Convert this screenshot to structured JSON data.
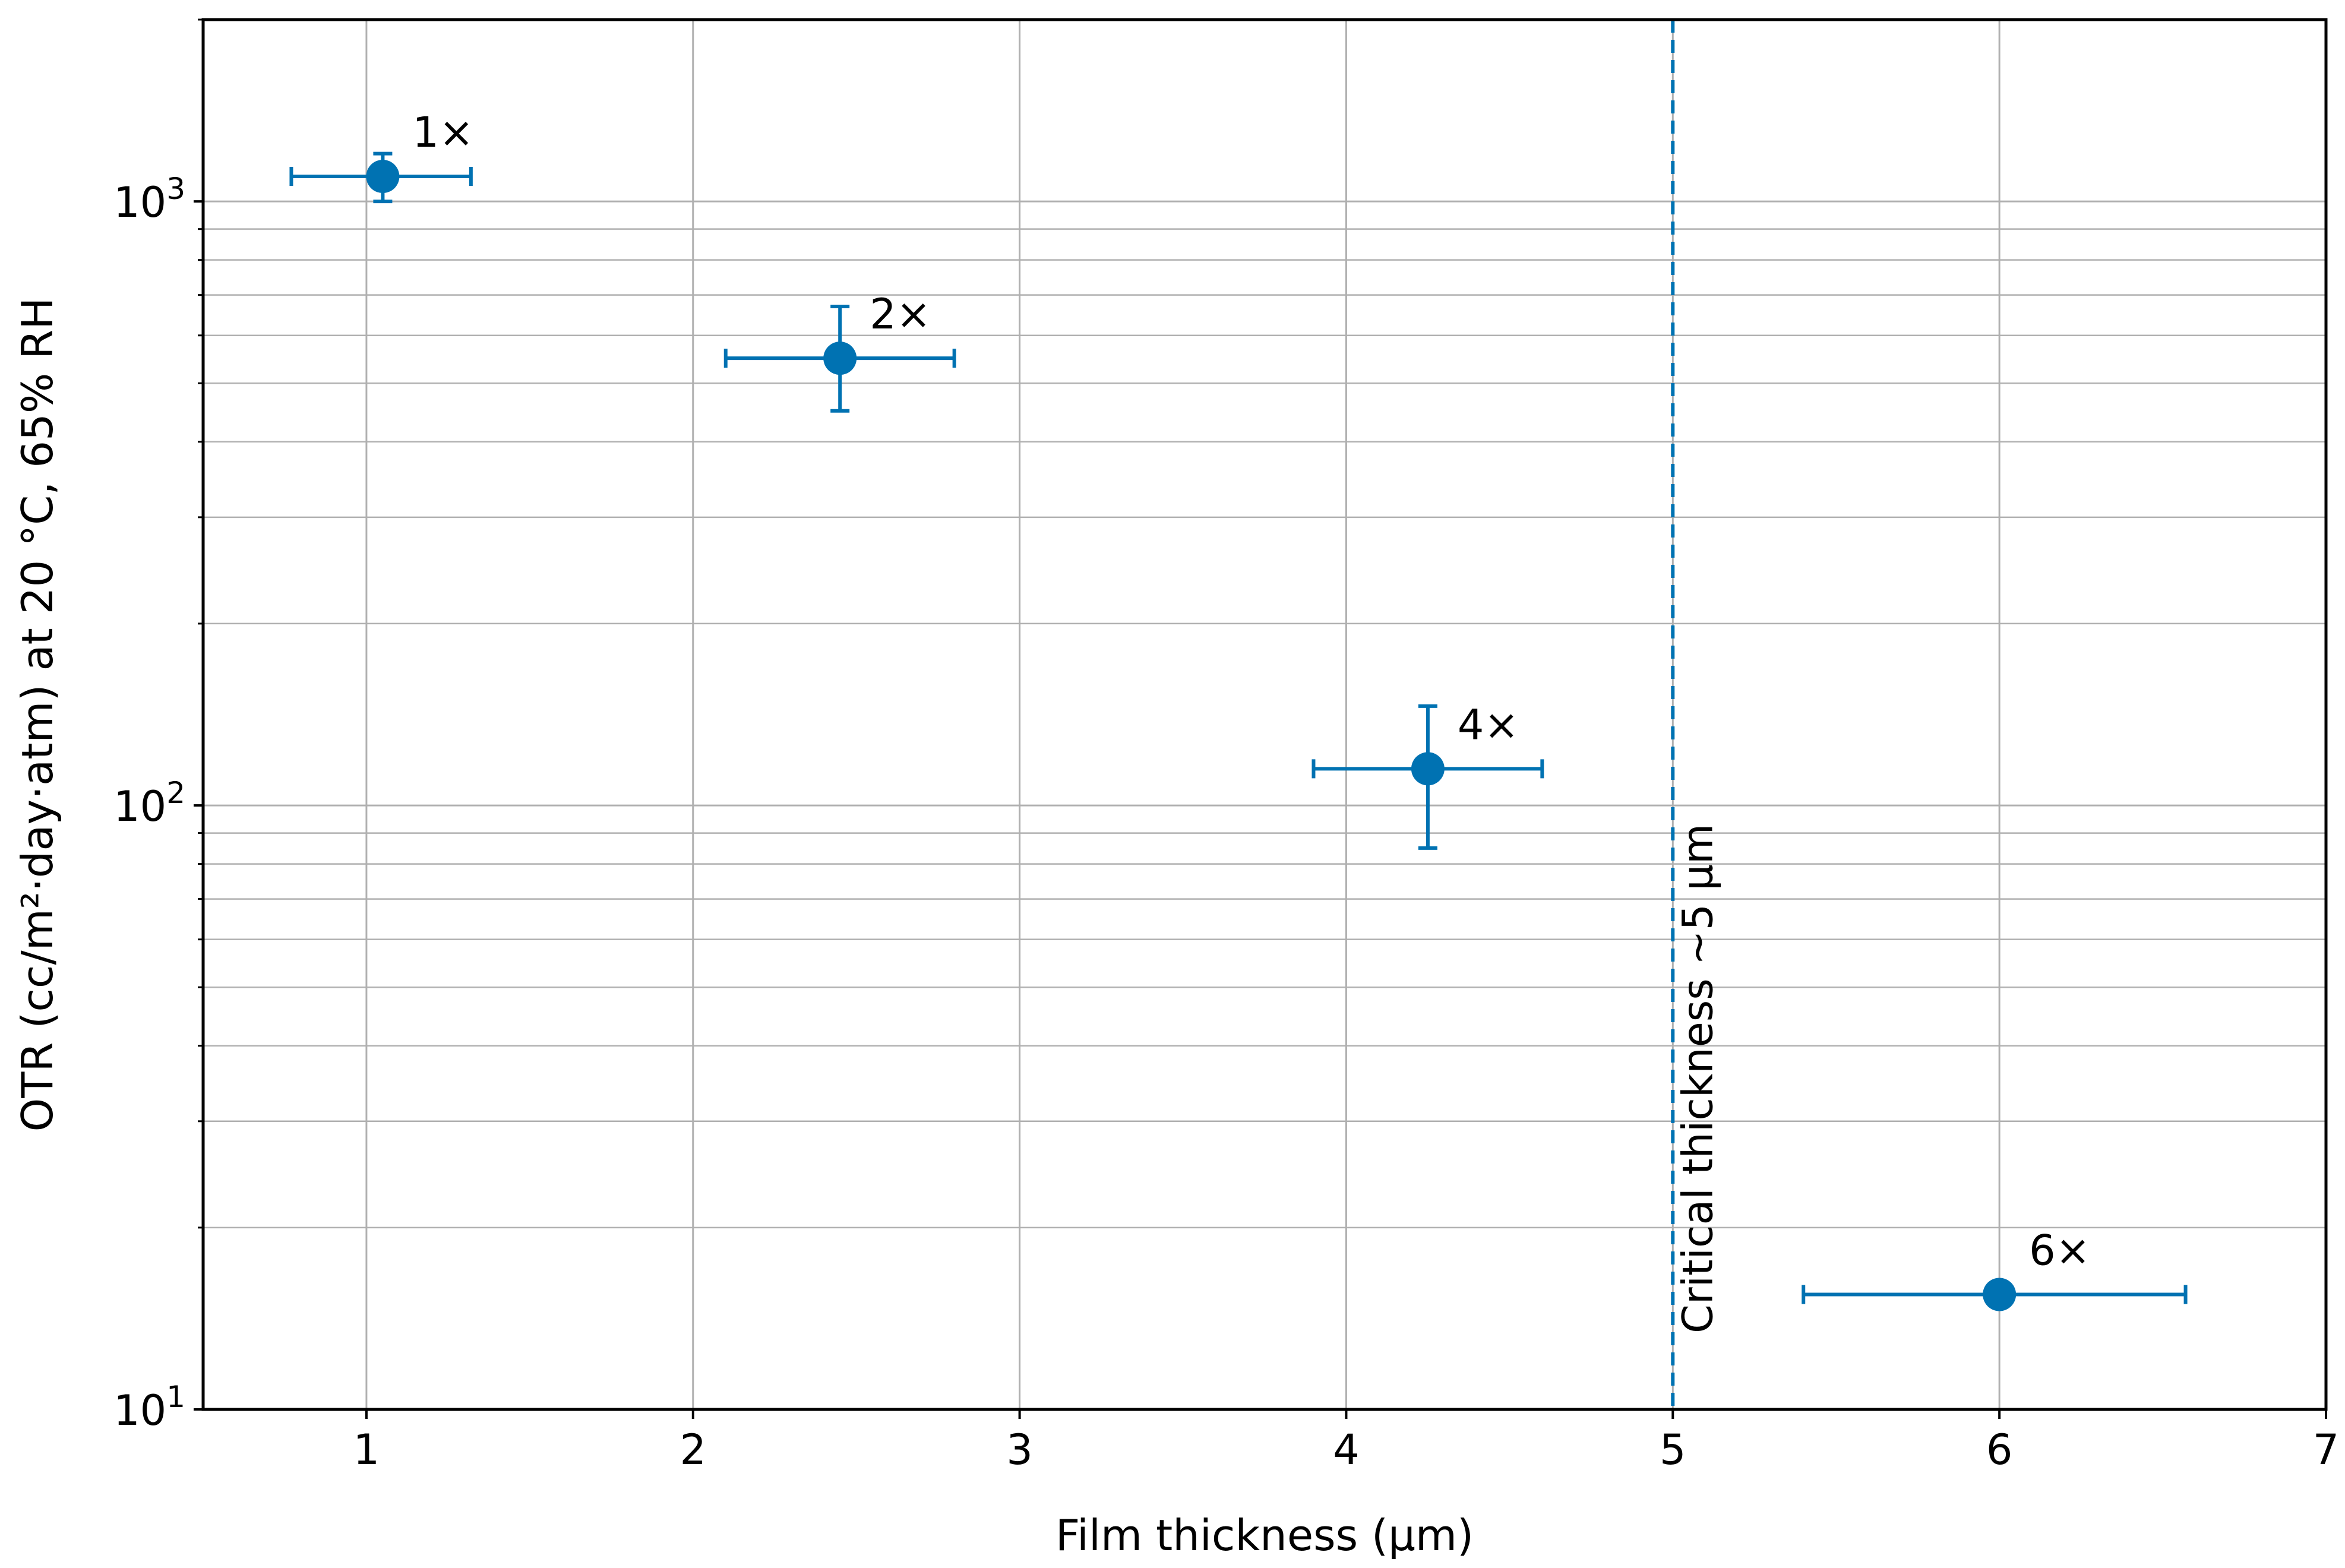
{
  "chart_data": {
    "type": "scatter",
    "xlabel": "Film thickness (µm)",
    "ylabel": "OTR (cc/m²·day·atm) at 20 °C, 65% RH",
    "xlim": [
      0.5,
      7
    ],
    "ylim": [
      10,
      2000
    ],
    "yscale": "log",
    "grid": true,
    "x_ticks": [
      1,
      2,
      3,
      4,
      5,
      6,
      7
    ],
    "y_ticks": [
      {
        "value": 10,
        "base": "10",
        "exp": "1"
      },
      {
        "value": 100,
        "base": "10",
        "exp": "2"
      },
      {
        "value": 1000,
        "base": "10",
        "exp": "3"
      }
    ],
    "color": "#0072b2",
    "points": [
      {
        "label": "1×",
        "x": 1.05,
        "y": 1100,
        "xerr": [
          0.77,
          1.32
        ],
        "yerr": [
          1000,
          1200
        ]
      },
      {
        "label": "2×",
        "x": 2.45,
        "y": 550,
        "xerr": [
          2.1,
          2.8
        ],
        "yerr": [
          450,
          670
        ]
      },
      {
        "label": "4×",
        "x": 4.25,
        "y": 115,
        "xerr": [
          3.9,
          4.6
        ],
        "yerr": [
          85,
          146
        ]
      },
      {
        "label": "6×",
        "x": 6.0,
        "y": 15.5,
        "xerr": [
          5.4,
          6.57
        ],
        "yerr": [
          15.5,
          15.5
        ]
      }
    ],
    "vline": {
      "x": 5.0,
      "label": "Critical thickness ~5 µm"
    }
  }
}
